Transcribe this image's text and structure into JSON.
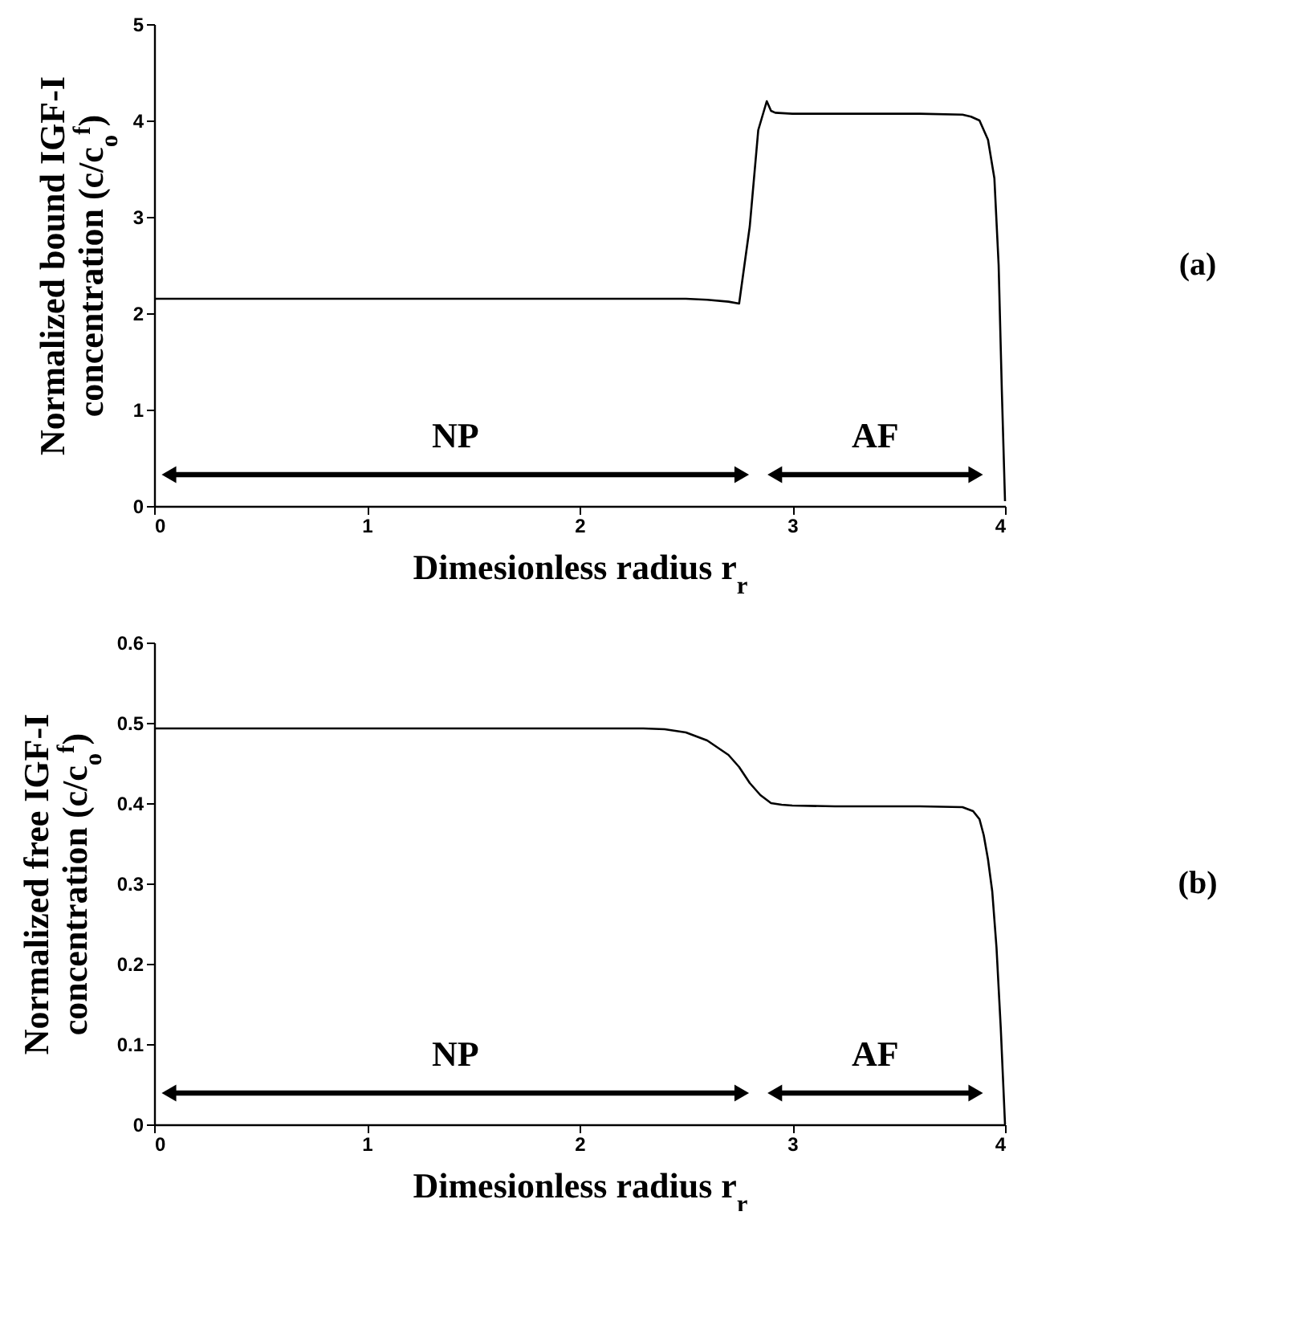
{
  "chart_data": [
    {
      "type": "line",
      "xlabel": "Dimesionless radius r$_{r}$",
      "ylabel": "Normalized bound IGF-I concentration (c/c$_{o}$$^{f}$)",
      "x": [
        0,
        0.5,
        1,
        1.5,
        2,
        2.5,
        2.6,
        2.7,
        2.75,
        2.8,
        2.84,
        2.88,
        2.9,
        2.92,
        3,
        3.2,
        3.4,
        3.6,
        3.8,
        3.84,
        3.88,
        3.92,
        3.95,
        3.97,
        3.985,
        4
      ],
      "series": [
        {
          "color": "#000000",
          "values": [
            2.15,
            2.15,
            2.15,
            2.15,
            2.15,
            2.15,
            2.14,
            2.12,
            2.1,
            2.9,
            3.9,
            4.2,
            4.1,
            4.08,
            4.07,
            4.07,
            4.07,
            4.07,
            4.06,
            4.04,
            4.0,
            3.8,
            3.4,
            2.5,
            1.2,
            0.05
          ]
        }
      ],
      "xlim": [
        0,
        4
      ],
      "xticks": [
        0,
        1,
        2,
        3,
        4
      ],
      "ylim": [
        0,
        5
      ],
      "yticks": [
        0,
        1,
        2,
        3,
        4,
        5
      ],
      "annotations": [
        "NP",
        "AF",
        "(a)"
      ]
    },
    {
      "type": "line",
      "xlabel": "Dimesionless radius r$_{r}$",
      "ylabel": "Normalized free IGF-I concentration (c/c$_{o}$$^{f}$)",
      "x": [
        0,
        0.5,
        1,
        1.5,
        2,
        2.3,
        2.4,
        2.5,
        2.6,
        2.7,
        2.75,
        2.8,
        2.85,
        2.9,
        2.95,
        3,
        3.2,
        3.4,
        3.6,
        3.8,
        3.85,
        3.88,
        3.9,
        3.92,
        3.94,
        3.96,
        3.98,
        3.99,
        4
      ],
      "series": [
        {
          "color": "#000000",
          "values": [
            0.493,
            0.493,
            0.493,
            0.493,
            0.493,
            0.493,
            0.492,
            0.488,
            0.478,
            0.46,
            0.445,
            0.425,
            0.41,
            0.4,
            0.398,
            0.397,
            0.396,
            0.396,
            0.396,
            0.395,
            0.39,
            0.38,
            0.36,
            0.33,
            0.29,
            0.22,
            0.12,
            0.06,
            0
          ]
        }
      ],
      "xlim": [
        0,
        4
      ],
      "xticks": [
        0,
        1,
        2,
        3,
        4
      ],
      "ylim": [
        0,
        0.6
      ],
      "yticks": [
        0,
        0.1,
        0.2,
        0.3,
        0.4,
        0.5,
        0.6
      ],
      "annotations": [
        "NP",
        "AF",
        "(b)"
      ]
    }
  ]
}
